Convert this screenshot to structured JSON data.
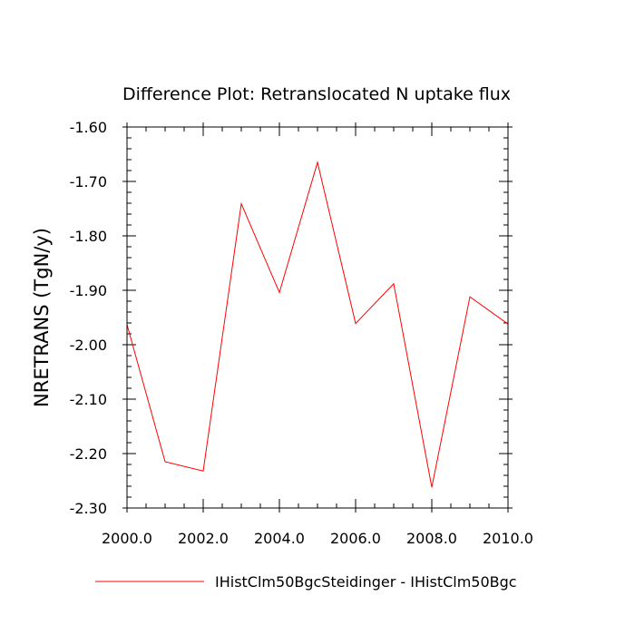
{
  "chart_data": {
    "type": "line",
    "title": "Difference Plot: Retranslocated N uptake flux",
    "xlabel": "",
    "ylabel": "NRETRANS  (TgN/y)",
    "xlim": [
      2000,
      2010
    ],
    "ylim": [
      -2.3,
      -1.6
    ],
    "x_ticks": [
      2000,
      2002,
      2004,
      2006,
      2008,
      2010
    ],
    "x_tick_labels": [
      "2000.0",
      "2002.0",
      "2004.0",
      "2006.0",
      "2008.0",
      "2010.0"
    ],
    "y_ticks": [
      -1.6,
      -1.7,
      -1.8,
      -1.9,
      -2.0,
      -2.1,
      -2.2,
      -2.3
    ],
    "y_tick_labels": [
      "-1.60",
      "-1.70",
      "-1.80",
      "-1.90",
      "-2.00",
      "-2.10",
      "-2.20",
      "-2.30"
    ],
    "grid": false,
    "legend_position": "bottom",
    "x": [
      2000,
      2001,
      2002,
      2003,
      2004,
      2005,
      2006,
      2007,
      2008,
      2009,
      2010
    ],
    "series": [
      {
        "name": "IHistClm50BgcSteidinger - IHistClm50Bgc",
        "color": "#ff0000",
        "values": [
          -1.963,
          -2.215,
          -2.232,
          -1.741,
          -1.904,
          -1.665,
          -1.961,
          -1.888,
          -2.262,
          -1.912,
          -1.962
        ]
      }
    ]
  }
}
